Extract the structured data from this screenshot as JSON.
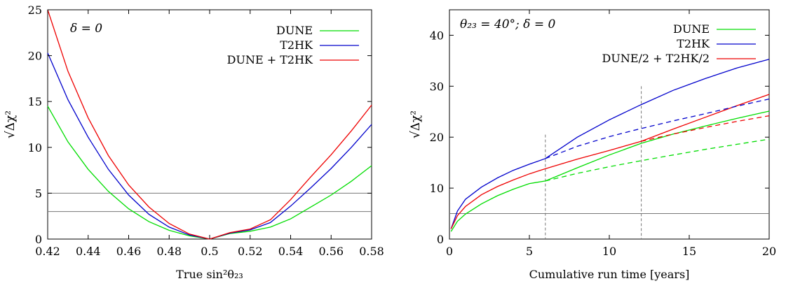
{
  "chart_data": [
    {
      "type": "line",
      "annotation": "δ = 0",
      "xlabel": "True sin²θ₂₃",
      "ylabel": "√Δχ²",
      "xlim": [
        0.42,
        0.58
      ],
      "ylim": [
        0,
        25
      ],
      "xticks": [
        0.42,
        0.44,
        0.46,
        0.48,
        0.5,
        0.52,
        0.54,
        0.56,
        0.58
      ],
      "xtick_labels": [
        "0.42",
        "0.44",
        "0.46",
        "0.48",
        "0.5",
        "0.52",
        "0.54",
        "0.56",
        "0.58"
      ],
      "yticks": [
        0,
        5,
        10,
        15,
        20,
        25
      ],
      "ytick_labels": [
        "0",
        "5",
        "10",
        "15",
        "20",
        "25"
      ],
      "hlines": [
        3,
        5
      ],
      "grid": false,
      "legend_position": "top-right",
      "series": [
        {
          "name": "DUNE",
          "color": "#00dd00",
          "dash": "solid",
          "x": [
            0.42,
            0.43,
            0.44,
            0.45,
            0.46,
            0.47,
            0.48,
            0.49,
            0.5,
            0.51,
            0.52,
            0.53,
            0.54,
            0.55,
            0.56,
            0.57,
            0.58
          ],
          "y": [
            14.5,
            10.6,
            7.6,
            5.2,
            3.3,
            1.9,
            0.95,
            0.35,
            0.0,
            0.6,
            0.85,
            1.3,
            2.2,
            3.5,
            4.8,
            6.3,
            8.0
          ]
        },
        {
          "name": "T2HK",
          "color": "#0000cc",
          "dash": "solid",
          "x": [
            0.42,
            0.43,
            0.44,
            0.45,
            0.46,
            0.47,
            0.48,
            0.49,
            0.5,
            0.51,
            0.52,
            0.53,
            0.54,
            0.55,
            0.56,
            0.57,
            0.58
          ],
          "y": [
            20.3,
            15.2,
            11.1,
            7.6,
            4.8,
            2.7,
            1.3,
            0.45,
            0.0,
            0.65,
            1.0,
            1.8,
            3.6,
            5.6,
            7.7,
            10.0,
            12.5
          ]
        },
        {
          "name": "DUNE + T2HK",
          "color": "#ee0000",
          "dash": "solid",
          "x": [
            0.42,
            0.43,
            0.44,
            0.45,
            0.46,
            0.47,
            0.48,
            0.49,
            0.5,
            0.51,
            0.52,
            0.53,
            0.54,
            0.55,
            0.56,
            0.57,
            0.58
          ],
          "y": [
            25.0,
            18.3,
            13.2,
            9.1,
            5.9,
            3.5,
            1.7,
            0.55,
            0.0,
            0.7,
            1.1,
            2.1,
            4.3,
            6.8,
            9.2,
            11.8,
            14.6
          ]
        }
      ]
    },
    {
      "type": "line",
      "annotation": "θ₂₃ = 40°; δ = 0",
      "xlabel": "Cumulative run time [years]",
      "ylabel": "√Δχ²",
      "xlim": [
        0,
        20
      ],
      "ylim": [
        0,
        45
      ],
      "xticks": [
        0,
        5,
        10,
        15,
        20
      ],
      "xtick_labels": [
        "0",
        "5",
        "10",
        "15",
        "20"
      ],
      "yticks": [
        0,
        10,
        20,
        30,
        40
      ],
      "ytick_labels": [
        "0",
        "10",
        "20",
        "30",
        "40"
      ],
      "hlines": [
        5
      ],
      "vlines": [
        6,
        12
      ],
      "grid": false,
      "legend_position": "top-right",
      "series": [
        {
          "name": "DUNE",
          "color": "#00dd00",
          "dash": "solid",
          "x": [
            0.1,
            0.5,
            1,
            2,
            3,
            4,
            5,
            6,
            8,
            10,
            12,
            14,
            16,
            18,
            20
          ],
          "y": [
            1.5,
            3.5,
            4.9,
            6.9,
            8.5,
            9.8,
            10.9,
            11.4,
            14.0,
            16.5,
            18.8,
            20.6,
            22.2,
            23.7,
            25.1
          ]
        },
        {
          "name": "T2HK",
          "color": "#0000cc",
          "dash": "solid",
          "x": [
            0.1,
            0.5,
            1,
            2,
            3,
            4,
            5,
            6,
            8,
            10,
            12,
            14,
            16,
            18,
            20
          ],
          "y": [
            2.0,
            5.5,
            7.8,
            10.2,
            12.0,
            13.5,
            14.7,
            15.8,
            20.0,
            23.4,
            26.4,
            29.2,
            31.5,
            33.6,
            35.3
          ]
        },
        {
          "name": "DUNE/2 + T2HK/2",
          "color": "#ee0000",
          "dash": "solid",
          "x": [
            0.1,
            0.5,
            1,
            2,
            3,
            4,
            5,
            6,
            8,
            10,
            12,
            14,
            16,
            18,
            20
          ],
          "y": [
            2.0,
            4.6,
            6.4,
            8.7,
            10.3,
            11.6,
            12.8,
            13.8,
            15.7,
            17.4,
            19.2,
            21.6,
            23.9,
            26.2,
            28.4
          ]
        },
        {
          "color": "#0000cc",
          "dash": "dashed",
          "x": [
            6,
            8,
            10,
            12,
            14,
            16,
            18,
            20
          ],
          "y": [
            15.8,
            18.2,
            20.1,
            21.7,
            23.2,
            24.6,
            26.1,
            27.5
          ]
        },
        {
          "color": "#00dd00",
          "dash": "dashed",
          "x": [
            6,
            8,
            10,
            12,
            14,
            16,
            18,
            20
          ],
          "y": [
            11.4,
            12.9,
            14.2,
            15.4,
            16.5,
            17.6,
            18.6,
            19.6
          ]
        },
        {
          "color": "#ee0000",
          "dash": "dashed",
          "x": [
            12,
            14,
            16,
            18,
            20
          ],
          "y": [
            19.2,
            20.6,
            21.9,
            23.1,
            24.2
          ]
        }
      ]
    }
  ]
}
